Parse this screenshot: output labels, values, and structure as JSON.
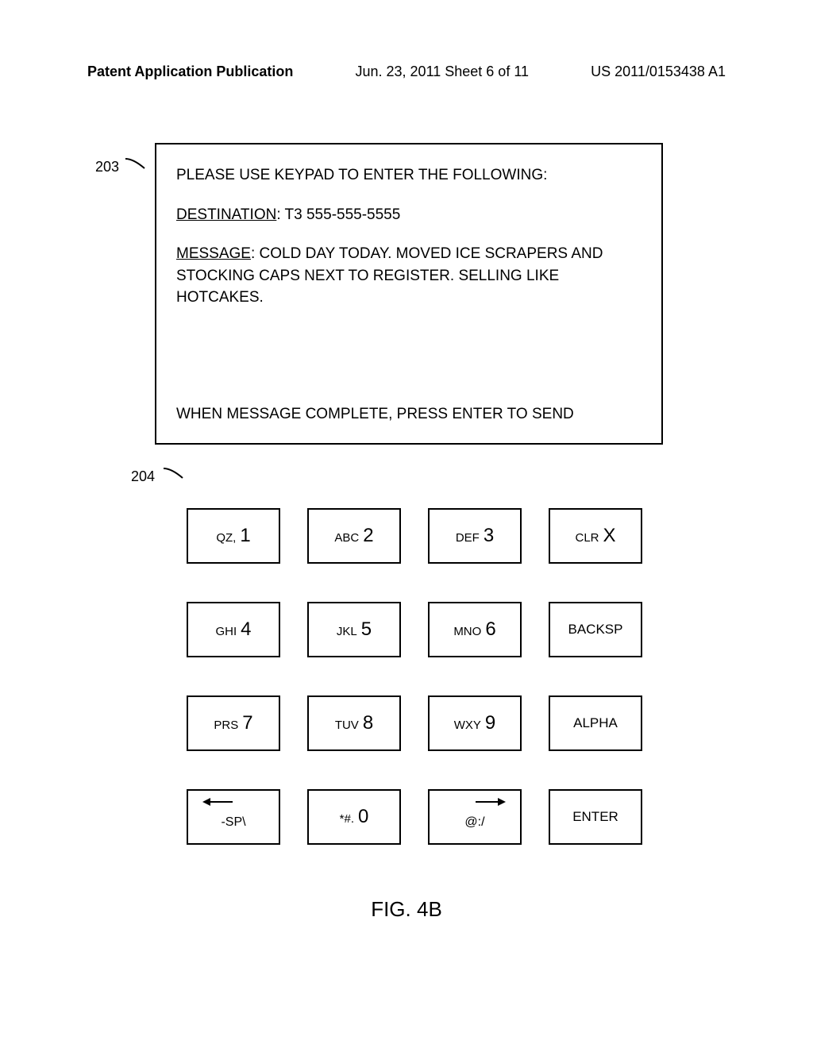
{
  "header": {
    "left": "Patent Application Publication",
    "center": "Jun. 23, 2011  Sheet 6 of 11",
    "right": "US 2011/0153438 A1"
  },
  "refs": {
    "r203": "203",
    "r204": "204"
  },
  "display": {
    "prompt": "PLEASE USE KEYPAD TO ENTER THE FOLLOWING:",
    "dest_label": "DESTINATION",
    "dest_value": ": T3 555-555-5555",
    "msg_label": "MESSAGE",
    "msg_value": ":  COLD DAY TODAY.  MOVED ICE SCRAPERS AND STOCKING CAPS NEXT TO REGISTER.  SELLING LIKE HOTCAKES.",
    "footer": "WHEN MESSAGE COMPLETE, PRESS ENTER TO SEND"
  },
  "keypad": {
    "keys": [
      {
        "letters": "QZ,",
        "digit": "1",
        "name": "key-1"
      },
      {
        "letters": "ABC",
        "digit": "2",
        "name": "key-2"
      },
      {
        "letters": "DEF",
        "digit": "3",
        "name": "key-3"
      },
      {
        "special": "CLR",
        "digit": "X",
        "name": "key-clr"
      },
      {
        "letters": "GHI",
        "digit": "4",
        "name": "key-4"
      },
      {
        "letters": "JKL",
        "digit": "5",
        "name": "key-5"
      },
      {
        "letters": "MNO",
        "digit": "6",
        "name": "key-6"
      },
      {
        "single": "BACKSP",
        "name": "key-backsp"
      },
      {
        "letters": "PRS",
        "digit": "7",
        "name": "key-7"
      },
      {
        "letters": "TUV",
        "digit": "8",
        "name": "key-8"
      },
      {
        "letters": "WXY",
        "digit": "9",
        "name": "key-9"
      },
      {
        "single": "ALPHA",
        "name": "key-alpha"
      },
      {
        "arrow_left": true,
        "below": "-SP\\",
        "name": "key-sp-left"
      },
      {
        "letters": "*#.",
        "digit": "0",
        "name": "key-0"
      },
      {
        "arrow_right": true,
        "below": "@:/",
        "name": "key-at-right"
      },
      {
        "single": "ENTER",
        "name": "key-enter"
      }
    ]
  },
  "figure": {
    "label": "FIG. 4B"
  },
  "colors": {
    "line": "#000000",
    "bg": "#ffffff"
  }
}
